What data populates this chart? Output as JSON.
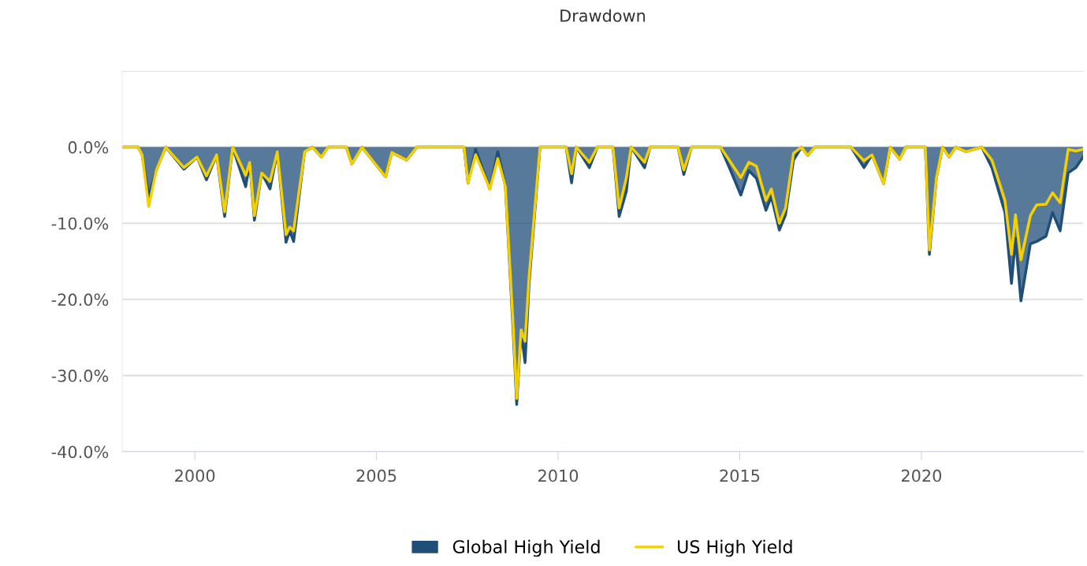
{
  "chart_data": {
    "type": "area",
    "title": "Drawdown",
    "x": [
      1998.01,
      1998.44,
      1998.55,
      1998.73,
      1998.94,
      1999.2,
      1999.7,
      2000.06,
      2000.32,
      2000.6,
      2000.82,
      2001.04,
      2001.4,
      2001.51,
      2001.64,
      2001.84,
      2002.07,
      2002.27,
      2002.51,
      2002.61,
      2002.72,
      2003.02,
      2003.24,
      2003.48,
      2003.67,
      2004.17,
      2004.32,
      2004.6,
      2005.25,
      2005.42,
      2005.83,
      2006.11,
      2007.41,
      2007.52,
      2007.73,
      2008.12,
      2008.34,
      2008.55,
      2008.77,
      2008.86,
      2008.98,
      2009.09,
      2009.2,
      2009.5,
      2010.22,
      2010.37,
      2010.5,
      2010.86,
      2011.08,
      2011.51,
      2011.68,
      2011.88,
      2012.01,
      2012.38,
      2012.53,
      2013.3,
      2013.46,
      2013.67,
      2014.47,
      2014.75,
      2015.03,
      2015.25,
      2015.46,
      2015.72,
      2015.87,
      2016.09,
      2016.26,
      2016.48,
      2016.7,
      2016.87,
      2017.06,
      2018.06,
      2018.42,
      2018.64,
      2018.96,
      2019.14,
      2019.4,
      2019.57,
      2020.11,
      2020.22,
      2020.41,
      2020.58,
      2020.76,
      2020.95,
      2021.23,
      2021.66,
      2021.94,
      2022.3,
      2022.48,
      2022.59,
      2022.74,
      2023.0,
      2023.17,
      2023.43,
      2023.61,
      2023.82,
      2024.04,
      2024.25,
      2024.45
    ],
    "series": [
      {
        "name": "Global High Yield",
        "color": "#1f4e79",
        "values": [
          0,
          0,
          -1,
          -6.5,
          -3,
          0,
          -2.9,
          -1.3,
          -4.3,
          -1,
          -9.1,
          0,
          -5.2,
          -2,
          -9.6,
          -3.4,
          -5.5,
          -0.6,
          -12.5,
          -11,
          -12.4,
          -0.6,
          0,
          -1.3,
          0,
          0,
          -2.2,
          0,
          -3.9,
          -0.7,
          -1.7,
          0,
          0,
          -4.7,
          -0.3,
          -5.5,
          -0.6,
          -5.2,
          -24.9,
          -33.8,
          -24.1,
          -28.3,
          -18,
          0,
          0,
          -4.7,
          0,
          -2.7,
          0,
          0,
          -9.1,
          -5.8,
          0,
          -2.7,
          0,
          0,
          -3.6,
          0,
          0,
          -3.1,
          -6.3,
          -3.1,
          -4.1,
          -8.3,
          -6.5,
          -10.9,
          -8.9,
          -1.7,
          0,
          -1.1,
          0,
          0,
          -2.7,
          -1,
          -4.8,
          0,
          -1.6,
          0,
          0,
          -14.1,
          -4.1,
          0,
          -1.3,
          0,
          -0.6,
          0,
          -2.7,
          -8.6,
          -17.9,
          -12,
          -20.2,
          -12.7,
          -12.4,
          -11.7,
          -8.6,
          -11,
          -3.4,
          -2.7,
          -1.3
        ]
      },
      {
        "name": "US High Yield",
        "type": "line",
        "color": "#f5d000",
        "values": [
          0,
          0,
          -1,
          -7.8,
          -3,
          0,
          -2.7,
          -1.3,
          -3.8,
          -1,
          -8.5,
          0,
          -3.7,
          -2,
          -9,
          -3.4,
          -4.5,
          -0.6,
          -11.5,
          -10.5,
          -11,
          -0.6,
          0,
          -1.3,
          0,
          0,
          -2.2,
          0,
          -3.9,
          -0.7,
          -1.7,
          0,
          0,
          -4.7,
          -1,
          -5.5,
          -1.5,
          -5.2,
          -24,
          -33,
          -24,
          -25.5,
          -17,
          0,
          0,
          -3.5,
          0,
          -2,
          0,
          0,
          -8,
          -4,
          0,
          -2,
          0,
          0,
          -3,
          0,
          0,
          -2,
          -4,
          -2,
          -2.5,
          -7,
          -5.5,
          -10,
          -8,
          -0.8,
          0,
          -1.1,
          0,
          0,
          -1.8,
          -1,
          -4.8,
          0,
          -1.6,
          0,
          0,
          -13.5,
          -4.1,
          0,
          -1.3,
          0,
          -0.6,
          0,
          -1.7,
          -7,
          -14.1,
          -8.9,
          -14.8,
          -9,
          -7.6,
          -7.5,
          -6,
          -7.3,
          -0.3,
          -0.5,
          -0.3
        ]
      }
    ],
    "xlim": [
      1998.0,
      2024.45
    ],
    "xticks": [
      2000,
      2005,
      2010,
      2015,
      2020
    ],
    "ylim": [
      -40,
      10
    ],
    "yticks": [
      {
        "value": -40,
        "label": "-40.0%"
      },
      {
        "value": -30,
        "label": "-30.0%"
      },
      {
        "value": -20,
        "label": "-20.0%"
      },
      {
        "value": -10,
        "label": "-10.0%"
      },
      {
        "value": 0,
        "label": "0.0%"
      },
      {
        "value": 10,
        "label": null
      }
    ],
    "grid": "y",
    "legend": "bottom",
    "marker": "none",
    "line_style": "solid"
  }
}
